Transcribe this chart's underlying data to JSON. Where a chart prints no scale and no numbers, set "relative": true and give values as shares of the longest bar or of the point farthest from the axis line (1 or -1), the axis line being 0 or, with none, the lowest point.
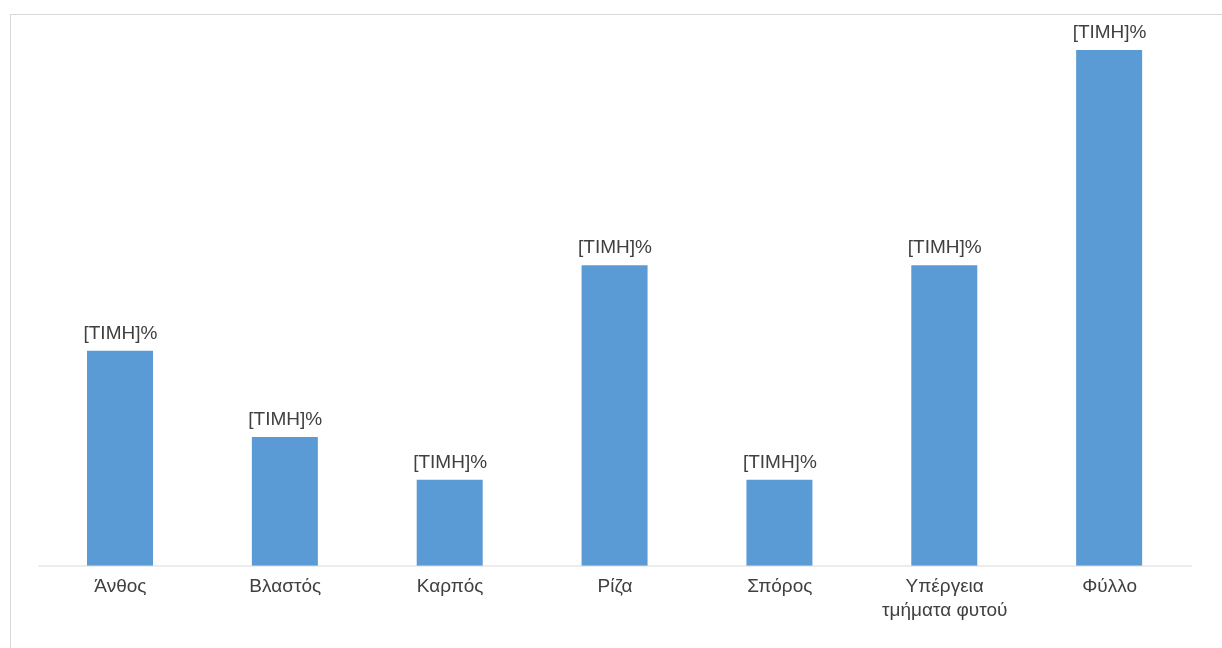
{
  "chart_data": {
    "type": "bar",
    "relative": true,
    "categories": [
      "Άνθος",
      "Βλαστός",
      "Καρπός",
      "Ρίζα",
      "Σπόρος",
      "Υπέργεια τμήματα φυτού",
      "Φύλλο"
    ],
    "values": [
      0.417,
      0.25,
      0.167,
      0.583,
      0.167,
      0.583,
      1
    ],
    "color": "#5b9bd5",
    "annotations": [
      {
        "text": "[ΤΙΜΗ]%",
        "x": "Άνθος",
        "y": 0.417
      },
      {
        "text": "[ΤΙΜΗ]%",
        "x": "Βλαστός",
        "y": 0.25
      },
      {
        "text": "[ΤΙΜΗ]%",
        "x": "Καρπός",
        "y": 0.167
      },
      {
        "text": "[ΤΙΜΗ]%",
        "x": "Ρίζα",
        "y": 0.583
      },
      {
        "text": "[ΤΙΜΗ]%",
        "x": "Σπόρος",
        "y": 0.167
      },
      {
        "text": "[ΤΙΜΗ]%",
        "x": "Υπέργεια τμήματα φυτού",
        "y": 0.583
      },
      {
        "text": "[ΤΙΜΗ]%",
        "x": "Φύλλο",
        "y": 1
      }
    ],
    "grid": false,
    "legend": false
  }
}
